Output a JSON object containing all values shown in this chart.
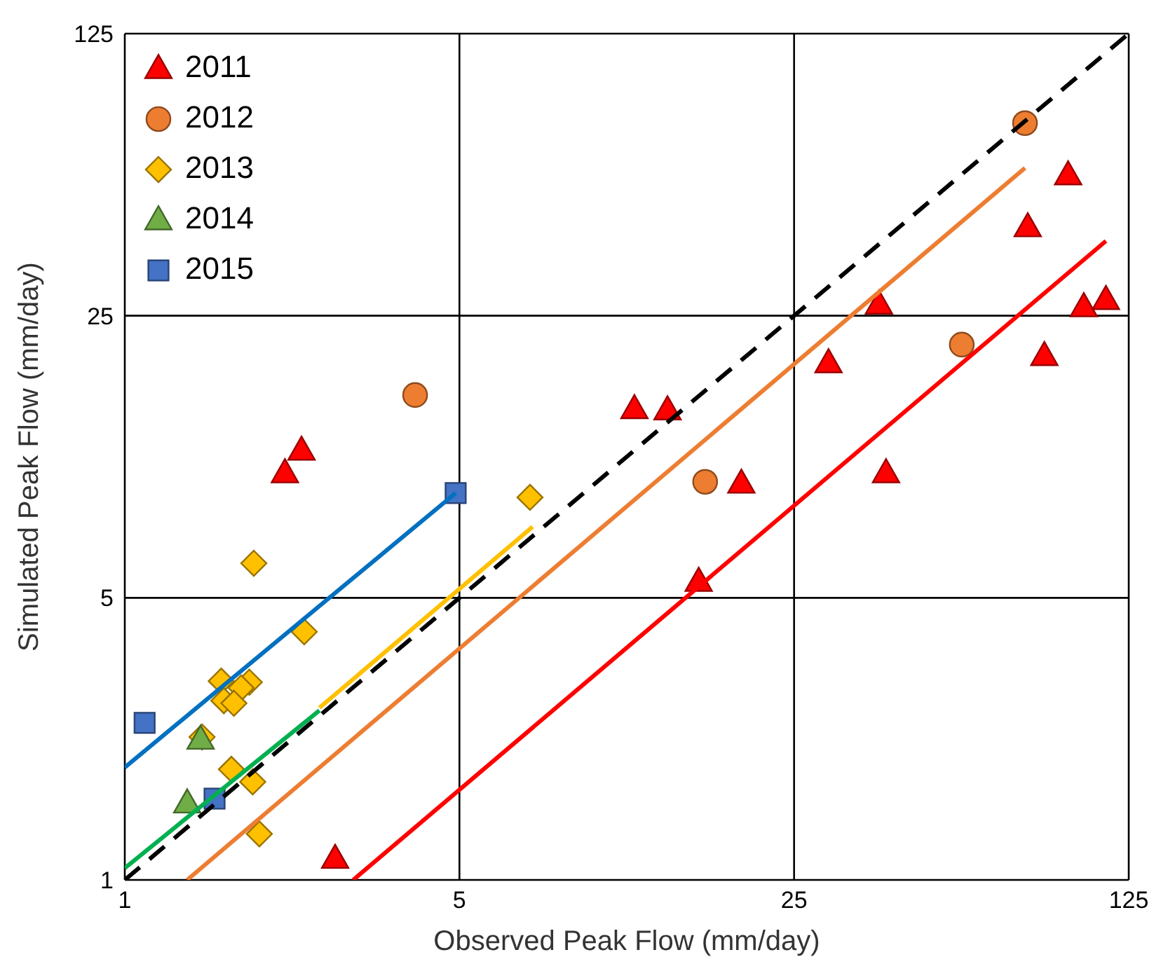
{
  "chart_data": {
    "type": "scatter",
    "xlabel": "Observed Peak Flow (mm/day)",
    "ylabel": "Simulated Peak Flow (mm/day)",
    "log": "xy",
    "xlim": [
      1,
      125
    ],
    "ylim": [
      1,
      125
    ],
    "xticks": [
      1,
      5,
      25,
      125
    ],
    "yticks": [
      1,
      5,
      25,
      125
    ],
    "grid": true,
    "legend": "top left",
    "series": [
      {
        "name": "2011",
        "marker": "triangle",
        "color": "#ff0000",
        "x": [
          2.16,
          2.34,
          2.75,
          11.6,
          13.6,
          15.8,
          19.4,
          29.5,
          37.6,
          38.9,
          76.9,
          83.3,
          93.4,
          100.7,
          112
        ],
        "values": [
          10.2,
          11.6,
          1.13,
          14.7,
          14.6,
          5.49,
          9.61,
          19.1,
          26.7,
          10.2,
          41.5,
          19.9,
          55.8,
          26.3,
          27.4
        ]
      },
      {
        "name": "2012",
        "marker": "circle",
        "color": "#ed7d31",
        "x": [
          4.04,
          16.3,
          56.0,
          75.9
        ],
        "values": [
          15.9,
          9.69,
          21.2,
          75.0
        ]
      },
      {
        "name": "2013",
        "marker": "diamond",
        "color": "#ffc000",
        "x": [
          1.86,
          2.37,
          1.59,
          1.82,
          1.75,
          1.61,
          1.69,
          1.45,
          1.67,
          1.85,
          1.91,
          7.02
        ],
        "values": [
          6.09,
          4.12,
          3.11,
          3.09,
          2.99,
          2.78,
          2.74,
          2.26,
          1.88,
          1.75,
          1.3,
          8.87
        ]
      },
      {
        "name": "2014",
        "marker": "triangle",
        "color": "#70ad47",
        "x": [
          1.44,
          1.35
        ],
        "values": [
          2.23,
          1.55
        ]
      },
      {
        "name": "2015",
        "marker": "square",
        "color": "#4472c4",
        "x": [
          1.1,
          1.54,
          4.91
        ],
        "values": [
          2.45,
          1.59,
          9.09
        ]
      },
      {
        "type": "line",
        "color": "#0070c0",
        "line_style": "solid",
        "x": [
          1,
          4.91
        ],
        "values": [
          1.9,
          9.09
        ]
      },
      {
        "type": "line",
        "color": "#00b050",
        "line_style": "solid",
        "x": [
          1,
          2.55
        ],
        "values": [
          1.07,
          2.63
        ]
      },
      {
        "type": "line",
        "color": "#ffc000",
        "line_style": "solid",
        "x": [
          2.55,
          7.11
        ],
        "values": [
          2.67,
          7.5
        ]
      },
      {
        "type": "line",
        "color": "#ed7d31",
        "line_style": "solid",
        "x": [
          1.35,
          75.9
        ],
        "values": [
          1,
          58.1
        ]
      },
      {
        "type": "line",
        "color": "#ff0000",
        "line_style": "solid",
        "x": [
          3.0,
          112
        ],
        "values": [
          1,
          38.3
        ]
      },
      {
        "type": "line",
        "color": "#000000",
        "line_style": "dashed",
        "x": [
          1,
          125
        ],
        "values": [
          1,
          125
        ]
      }
    ]
  }
}
